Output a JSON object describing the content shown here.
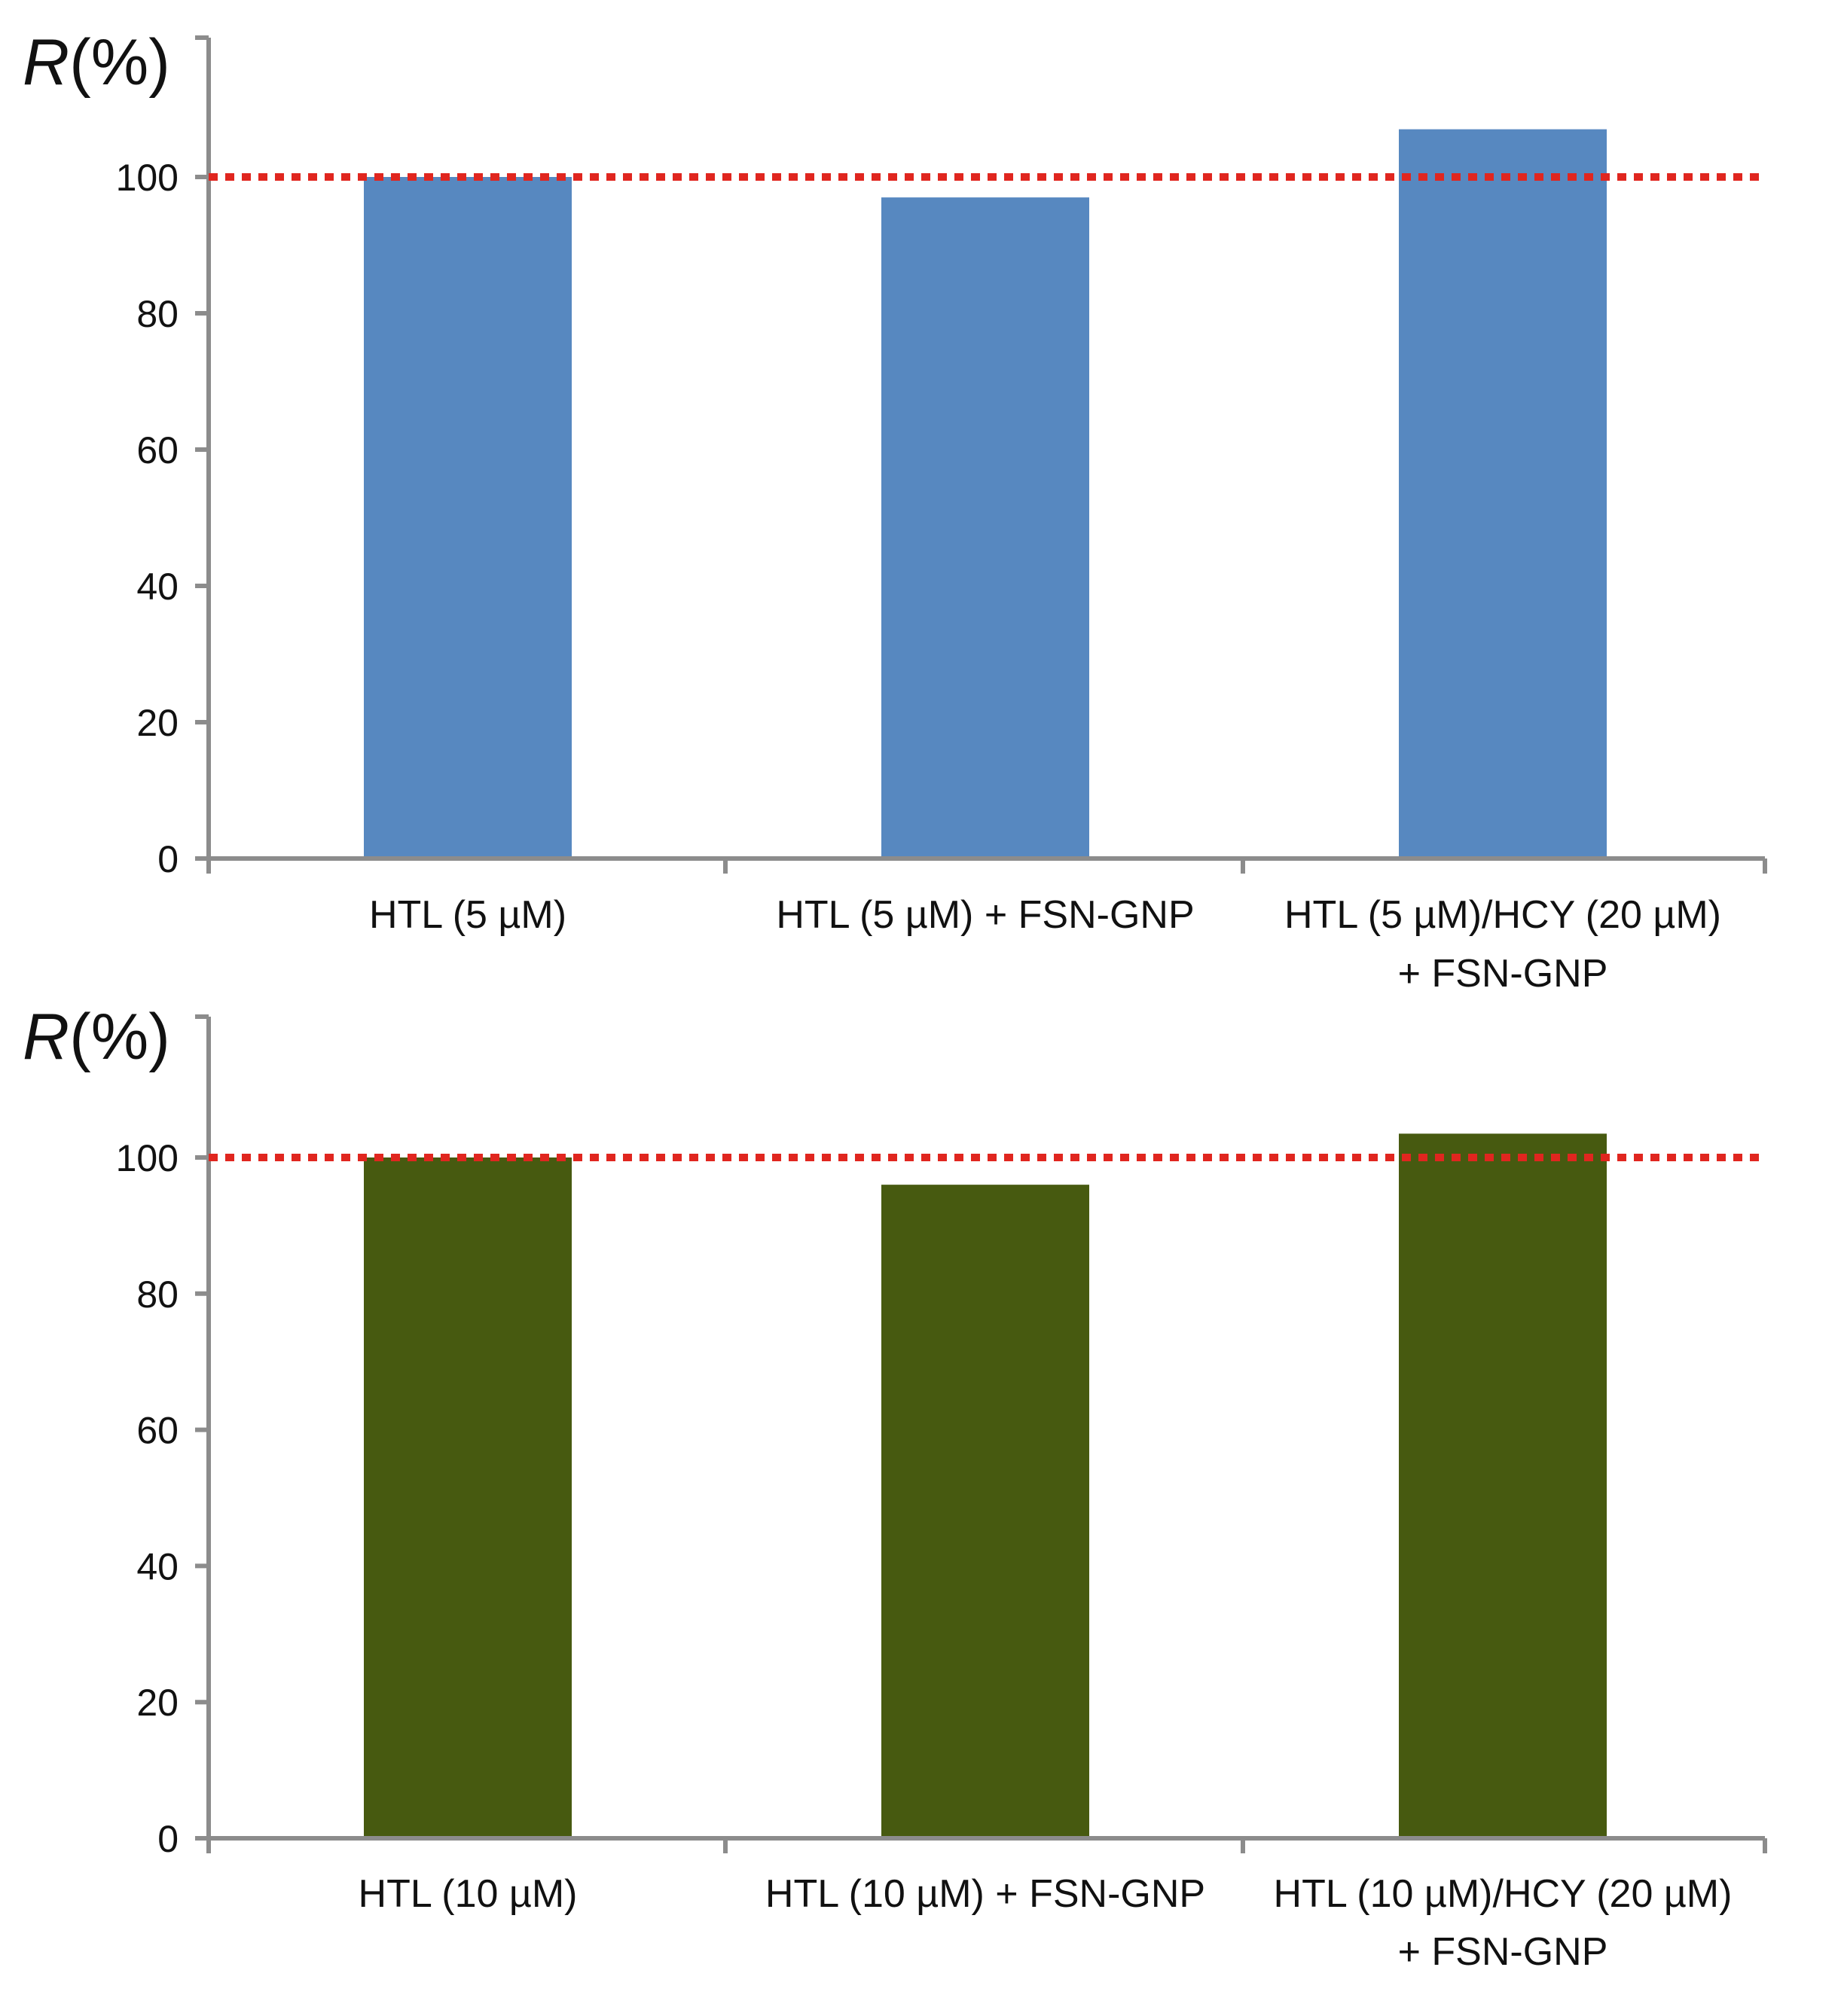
{
  "chart_data": [
    {
      "type": "bar",
      "ylabel_italic": "R",
      "ylabel_rest": "(%)",
      "ylim": [
        0,
        120
      ],
      "yticks": [
        "0",
        "20",
        "40",
        "60",
        "80",
        "100"
      ],
      "reference_line": 100,
      "categories": [
        [
          "HTL (5 µM)"
        ],
        [
          "HTL (5 µM) + FSN-GNP"
        ],
        [
          "HTL (5 µM)/HCY (20  µM)",
          "+ FSN-GNP"
        ]
      ],
      "values": [
        100,
        97,
        107
      ],
      "bar_color": "#5788c0",
      "ref_color": "#e0261f",
      "grid": false
    },
    {
      "type": "bar",
      "ylabel_italic": "R",
      "ylabel_rest": "(%)",
      "ylim": [
        0,
        120
      ],
      "yticks": [
        "0",
        "20",
        "40",
        "60",
        "80",
        "100"
      ],
      "reference_line": 100,
      "categories": [
        [
          "HTL (10 µM)"
        ],
        [
          "HTL (10 µM) + FSN-GNP"
        ],
        [
          "HTL (10 µM)/HCY (20  µM)",
          "+ FSN-GNP"
        ]
      ],
      "values": [
        100,
        96,
        103.5
      ],
      "bar_color": "#475a10",
      "ref_color": "#e0261f",
      "grid": false
    }
  ]
}
